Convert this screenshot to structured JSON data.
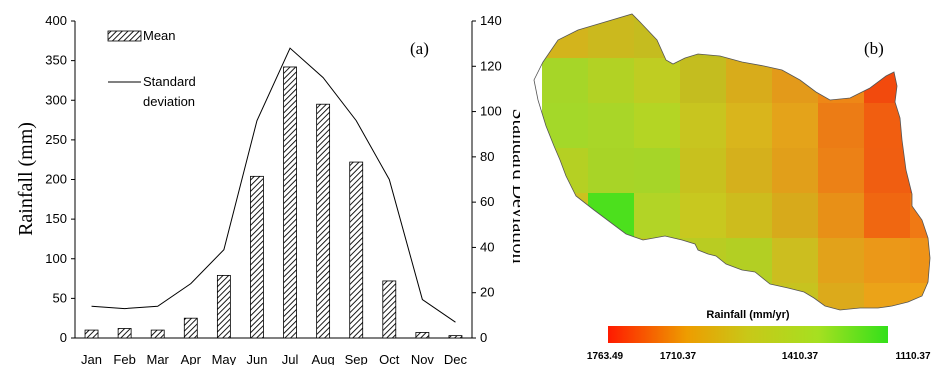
{
  "chart_data": [
    {
      "type": "bar",
      "panel_label": "(a)",
      "categories": [
        "Jan",
        "Feb",
        "Mar",
        "Apr",
        "May",
        "Jun",
        "Jul",
        "Aug",
        "Sep",
        "Oct",
        "Nov",
        "Dec"
      ],
      "series": [
        {
          "name": "Mean",
          "type": "bar",
          "axis": "left",
          "values": [
            10,
            12,
            10,
            25,
            79,
            204,
            342,
            295,
            222,
            72,
            7,
            3
          ]
        },
        {
          "name": "Standard deviation",
          "type": "line",
          "axis": "right",
          "values": [
            14,
            13,
            14,
            24,
            39,
            96,
            128,
            115,
            96,
            70,
            17,
            7
          ]
        }
      ],
      "ylabel": "Rainfall (mm)",
      "y2label": "Standard Deviation",
      "ylim": [
        0,
        400
      ],
      "y2lim": [
        0,
        140
      ],
      "yticks": [
        "0",
        "50",
        "100",
        "150",
        "200",
        "250",
        "300",
        "350",
        "400"
      ],
      "y2ticks": [
        "0",
        "20",
        "40",
        "60",
        "80",
        "100",
        "120",
        "140"
      ],
      "legend_placement": "top-left",
      "legend": {
        "mean": "Mean",
        "sd_line1": "Standard",
        "sd_line2": "deviation"
      },
      "grid": false
    },
    {
      "type": "heatmap",
      "panel_label": "(b)",
      "colorbar_title": "Rainfall (mm/yr)",
      "colorbar_ticks": [
        "1763.49",
        "1710.37",
        "1410.37",
        "1110.37"
      ],
      "colors": {
        "high": "#ff1a00",
        "mid": "#e8b000",
        "low": "#33e01a"
      }
    }
  ]
}
